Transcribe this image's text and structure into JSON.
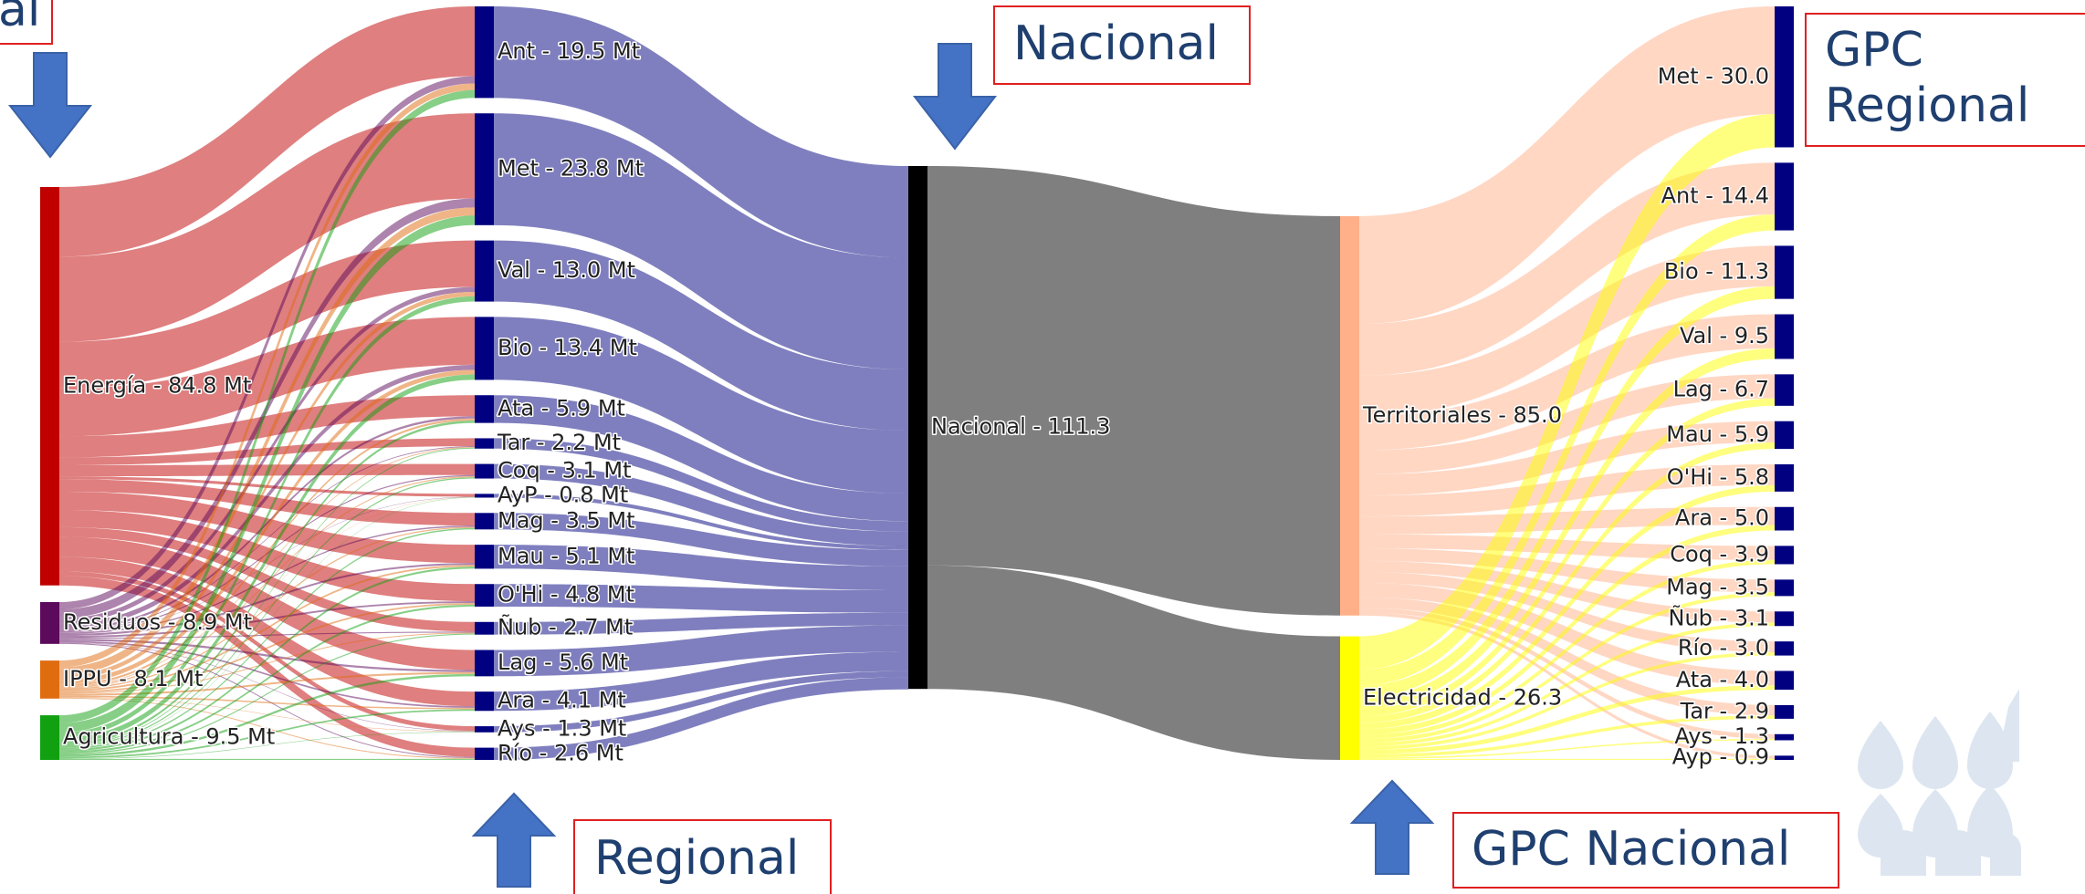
{
  "chart_data": {
    "type": "sankey",
    "columns": [
      {
        "nodes": [
          {
            "label": "Energía - 84.8 Mt",
            "value": 84.8,
            "color": "#c00000"
          },
          {
            "label": "Residuos - 8.9 Mt",
            "value": 8.9,
            "color": "#5c0a5c"
          },
          {
            "label": "IPPU - 8.1 Mt",
            "value": 8.1,
            "color": "#e06c10"
          },
          {
            "label": "Agricultura - 9.5 Mt",
            "value": 9.5,
            "color": "#10a010"
          }
        ]
      },
      {
        "nodes": [
          {
            "label": "Ant - 19.5 Mt",
            "value": 19.5,
            "color": "#000080"
          },
          {
            "label": "Met - 23.8 Mt",
            "value": 23.8,
            "color": "#000080"
          },
          {
            "label": "Val - 13.0 Mt",
            "value": 13.0,
            "color": "#000080"
          },
          {
            "label": "Bio - 13.4 Mt",
            "value": 13.4,
            "color": "#000080"
          },
          {
            "label": "Ata - 5.9 Mt",
            "value": 5.9,
            "color": "#000080"
          },
          {
            "label": "Tar - 2.2 Mt",
            "value": 2.2,
            "color": "#000080"
          },
          {
            "label": "Coq - 3.1 Mt",
            "value": 3.1,
            "color": "#000080"
          },
          {
            "label": "AyP - 0.8 Mt",
            "value": 0.8,
            "color": "#000080"
          },
          {
            "label": "Mag - 3.5 Mt",
            "value": 3.5,
            "color": "#000080"
          },
          {
            "label": "Mau - 5.1 Mt",
            "value": 5.1,
            "color": "#000080"
          },
          {
            "label": "O'Hi - 4.8 Mt",
            "value": 4.8,
            "color": "#000080"
          },
          {
            "label": "Ñub - 2.7 Mt",
            "value": 2.7,
            "color": "#000080"
          },
          {
            "label": "Lag - 5.6 Mt",
            "value": 5.6,
            "color": "#000080"
          },
          {
            "label": "Ara - 4.1 Mt",
            "value": 4.1,
            "color": "#000080"
          },
          {
            "label": "Ays - 1.3 Mt",
            "value": 1.3,
            "color": "#000080"
          },
          {
            "label": "Río - 2.6 Mt",
            "value": 2.6,
            "color": "#000080"
          }
        ]
      },
      {
        "nodes": [
          {
            "label": "Nacional - 111.3",
            "value": 111.3,
            "color": "#000000"
          }
        ]
      },
      {
        "nodes": [
          {
            "label": "Territoriales - 85.0",
            "value": 85.0,
            "color": "#ffb088"
          },
          {
            "label": "Electricidad - 26.3",
            "value": 26.3,
            "color": "#ffff00"
          }
        ]
      },
      {
        "nodes": [
          {
            "label": "Met - 30.0",
            "value": 30.0,
            "color": "#000080"
          },
          {
            "label": "Ant - 14.4",
            "value": 14.4,
            "color": "#000080"
          },
          {
            "label": "Bio - 11.3",
            "value": 11.3,
            "color": "#000080"
          },
          {
            "label": "Val - 9.5",
            "value": 9.5,
            "color": "#000080"
          },
          {
            "label": "Lag - 6.7",
            "value": 6.7,
            "color": "#000080"
          },
          {
            "label": "Mau - 5.9",
            "value": 5.9,
            "color": "#000080"
          },
          {
            "label": "O'Hi - 5.8",
            "value": 5.8,
            "color": "#000080"
          },
          {
            "label": "Ara - 5.0",
            "value": 5.0,
            "color": "#000080"
          },
          {
            "label": "Coq - 3.9",
            "value": 3.9,
            "color": "#000080"
          },
          {
            "label": "Mag - 3.5",
            "value": 3.5,
            "color": "#000080"
          },
          {
            "label": "Ñub - 3.1",
            "value": 3.1,
            "color": "#000080"
          },
          {
            "label": "Río - 3.0",
            "value": 3.0,
            "color": "#000080"
          },
          {
            "label": "Ata - 4.0",
            "value": 4.0,
            "color": "#000080"
          },
          {
            "label": "Tar - 2.9",
            "value": 2.9,
            "color": "#000080"
          },
          {
            "label": "Ays - 1.3",
            "value": 1.3,
            "color": "#000080"
          },
          {
            "label": "Ayp - 0.9",
            "value": 0.9,
            "color": "#000080"
          }
        ]
      }
    ],
    "link_opacity": 0.5,
    "annotations": {
      "sectorial": "al",
      "nacional": "Nacional",
      "regional": "Regional",
      "gpc_regional": [
        "GPC",
        "Regional"
      ],
      "gpc_nacional": "GPC Nacional"
    }
  }
}
